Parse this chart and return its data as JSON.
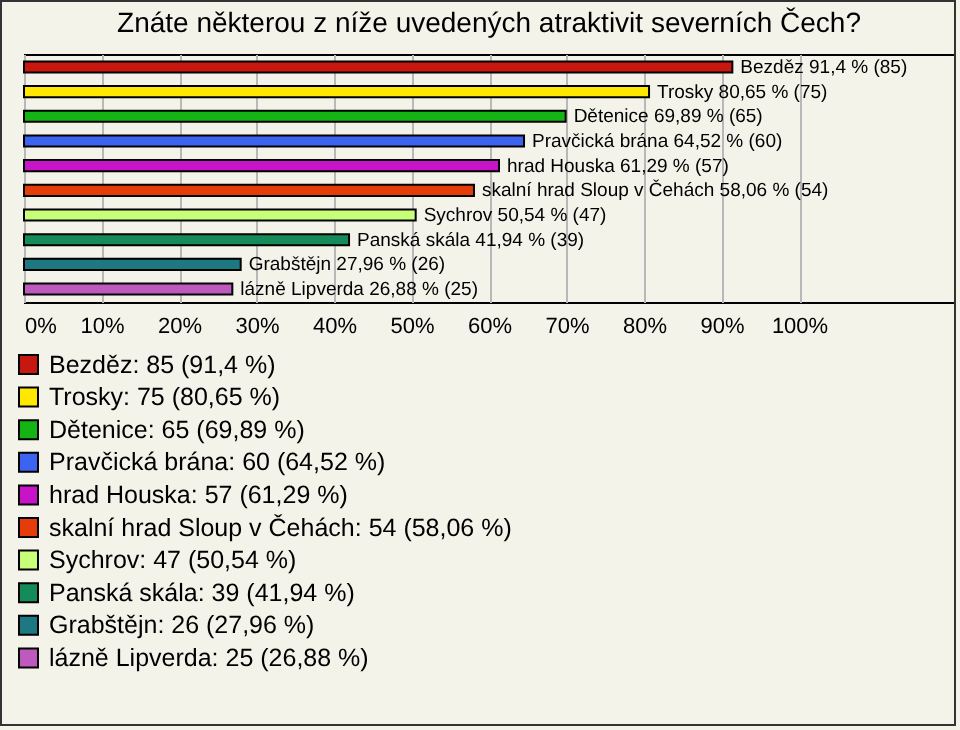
{
  "chart_data": {
    "type": "bar",
    "orientation": "horizontal",
    "title": "Znáte některou z níže uvedených atraktivit severních Čech?",
    "categories": [
      null,
      null,
      null,
      null,
      null,
      null,
      null,
      null,
      null,
      null
    ],
    "series": [
      {
        "name": "Bezděz: 85 (91,4 %)",
        "color": "#c8170f",
        "values": [
          91.4,
          null,
          null,
          null,
          null,
          null,
          null,
          null,
          null,
          null
        ],
        "value_labels": [
          "Bezděz 91,4 % (85)",
          null,
          null,
          null,
          null,
          null,
          null,
          null,
          null,
          null
        ]
      },
      {
        "name": "Trosky: 75 (80,65 %)",
        "color": "#ffe800",
        "values": [
          null,
          80.65,
          null,
          null,
          null,
          null,
          null,
          null,
          null,
          null
        ],
        "value_labels": [
          null,
          "Trosky 80,65 % (75)",
          null,
          null,
          null,
          null,
          null,
          null,
          null,
          null
        ]
      },
      {
        "name": "Dětenice: 65 (69,89 %)",
        "color": "#14b414",
        "values": [
          null,
          null,
          69.89,
          null,
          null,
          null,
          null,
          null,
          null,
          null
        ],
        "value_labels": [
          null,
          null,
          "Dětenice 69,89 % (65)",
          null,
          null,
          null,
          null,
          null,
          null,
          null
        ]
      },
      {
        "name": "Pravčická brána: 60 (64,52 %)",
        "color": "#3c64f0",
        "values": [
          null,
          null,
          null,
          64.52,
          null,
          null,
          null,
          null,
          null,
          null
        ],
        "value_labels": [
          null,
          null,
          null,
          "Pravčická brána 64,52 % (60)",
          null,
          null,
          null,
          null,
          null,
          null
        ]
      },
      {
        "name": "hrad Houska: 57 (61,29 %)",
        "color": "#c814c8",
        "values": [
          null,
          null,
          null,
          null,
          61.29,
          null,
          null,
          null,
          null,
          null
        ],
        "value_labels": [
          null,
          null,
          null,
          null,
          "hrad Houska 61,29 % (57)",
          null,
          null,
          null,
          null,
          null
        ]
      },
      {
        "name": "skalní hrad Sloup v Čehách: 54 (58,06 %)",
        "color": "#e63c0a",
        "values": [
          null,
          null,
          null,
          null,
          null,
          58.06,
          null,
          null,
          null,
          null
        ],
        "value_labels": [
          null,
          null,
          null,
          null,
          null,
          "skalní hrad Sloup v Čehách 58,06 % (54)",
          null,
          null,
          null,
          null
        ]
      },
      {
        "name": "Sychrov: 47 (50,54 %)",
        "color": "#c8ff78",
        "values": [
          null,
          null,
          null,
          null,
          null,
          null,
          50.54,
          null,
          null,
          null
        ],
        "value_labels": [
          null,
          null,
          null,
          null,
          null,
          null,
          "Sychrov 50,54 % (47)",
          null,
          null,
          null
        ]
      },
      {
        "name": "Panská skála: 39 (41,94 %)",
        "color": "#148c5a",
        "values": [
          null,
          null,
          null,
          null,
          null,
          null,
          null,
          41.94,
          null,
          null
        ],
        "value_labels": [
          null,
          null,
          null,
          null,
          null,
          null,
          null,
          "Panská skála 41,94 % (39)",
          null,
          null
        ]
      },
      {
        "name": "Grabštějn: 26 (27,96 %)",
        "color": "#1e7882",
        "values": [
          null,
          null,
          null,
          null,
          null,
          null,
          null,
          null,
          27.96,
          null
        ],
        "value_labels": [
          null,
          null,
          null,
          null,
          null,
          null,
          null,
          null,
          "Grabštějn 27,96 % (26)",
          null
        ]
      },
      {
        "name": "lázně Lipverda: 25 (26,88 %)",
        "color": "#be5abe",
        "values": [
          null,
          null,
          null,
          null,
          null,
          null,
          null,
          null,
          null,
          26.88
        ],
        "value_labels": [
          null,
          null,
          null,
          null,
          null,
          null,
          null,
          null,
          null,
          "lázně Lipverda 26,88 % (25)"
        ]
      }
    ],
    "xlim": [
      0,
      120
    ],
    "xticks": [
      {
        "value": 0,
        "label": "0%"
      },
      {
        "value": 10,
        "label": "10%"
      },
      {
        "value": 20,
        "label": "20%"
      },
      {
        "value": 30,
        "label": "30%"
      },
      {
        "value": 40,
        "label": "40%"
      },
      {
        "value": 50,
        "label": "50%"
      },
      {
        "value": 60,
        "label": "60%"
      },
      {
        "value": 70,
        "label": "70%"
      },
      {
        "value": 80,
        "label": "80%"
      },
      {
        "value": 90,
        "label": "90%"
      },
      {
        "value": 100,
        "label": "100%"
      }
    ],
    "grid": "x",
    "legend": "bottom"
  }
}
